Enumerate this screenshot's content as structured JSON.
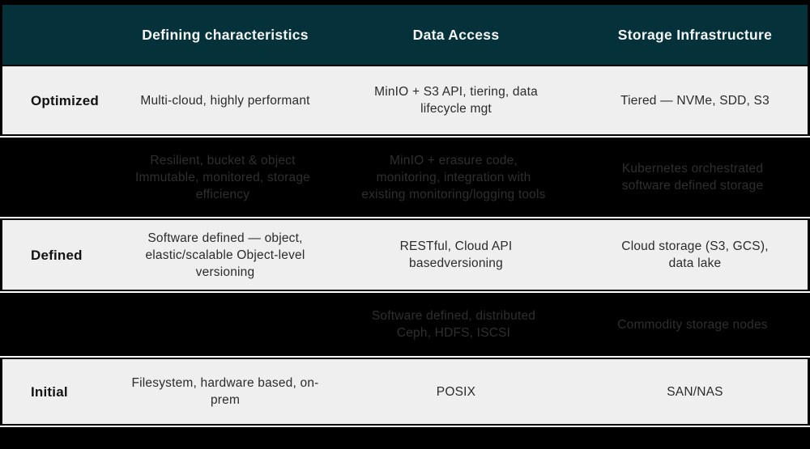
{
  "chart_data": {
    "type": "table",
    "columns": [
      "",
      "Defining characteristics",
      "Data Access",
      "Storage Infrastructure"
    ],
    "rows": [
      {
        "label": "Optimized",
        "style": "light",
        "cells": [
          "Multi-cloud, highly performant",
          "MinIO + S3 API, tiering, data lifecycle mgt",
          "Tiered — NVMe, SDD, S3"
        ]
      },
      {
        "label": "",
        "style": "dark",
        "cells": [
          "Resilient, bucket & object Immutable, monitored, storage efficiency",
          "MinIO + erasure code, monitoring, integration with existing monitoring/logging tools",
          "Kubernetes orchestrated software defined storage"
        ]
      },
      {
        "label": "Defined",
        "style": "light",
        "cells": [
          "Software defined — object, elastic/scalable Object-level versioning",
          "RESTful, Cloud API basedversioning",
          "Cloud storage (S3, GCS), data lake"
        ]
      },
      {
        "label": "",
        "style": "dark",
        "cells": [
          "",
          "Software defined, distributed Ceph, HDFS, ISCSI",
          "Commodity storage nodes"
        ]
      },
      {
        "label": "Initial",
        "style": "light",
        "cells": [
          "Filesystem, hardware based, on-prem",
          "POSIX",
          "SAN/NAS"
        ]
      }
    ],
    "layout": {
      "grid": "off",
      "legend": "none"
    }
  },
  "colors": {
    "header_background": "#04313a",
    "header_text": "#f5f7f7",
    "light_row_background": "#f0efef",
    "light_row_text": "#2b2b2b",
    "dark_row_background": "#000000",
    "dark_row_text": "#2f2f2f",
    "frame": "#000000"
  }
}
